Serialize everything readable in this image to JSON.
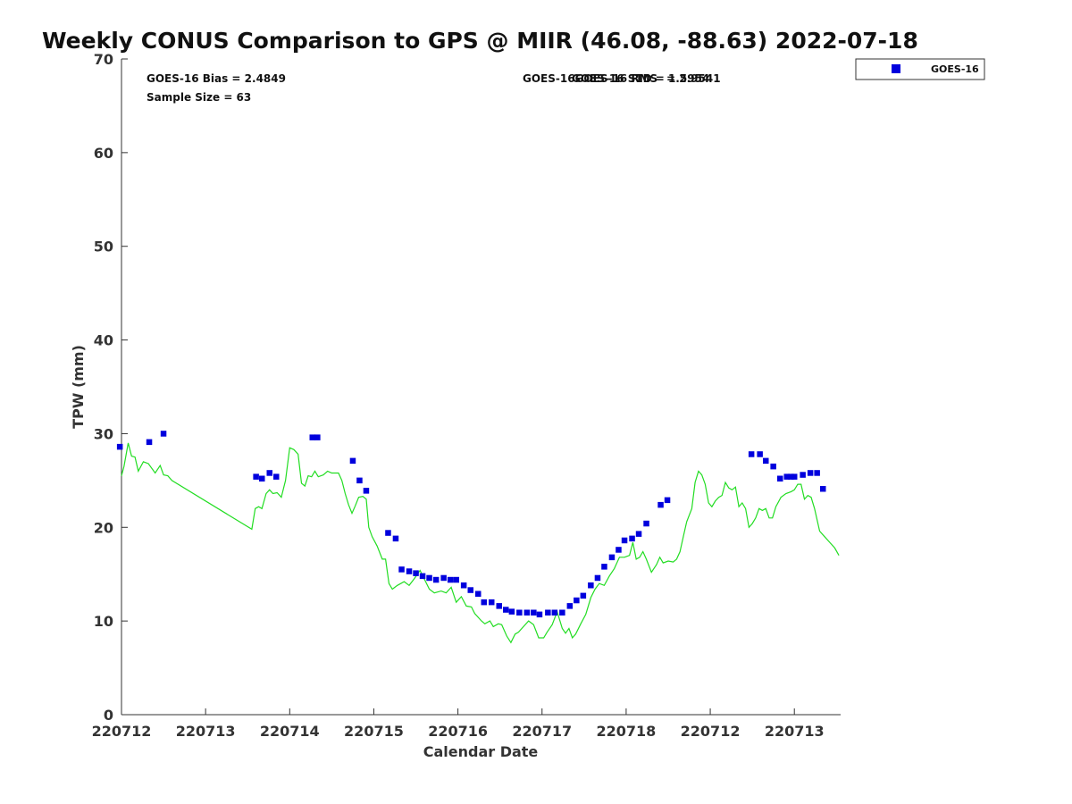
{
  "chart_data": {
    "type": "scatter",
    "title": "Weekly CONUS Comparison to GPS @ MIIR (46.08, -88.63) 2022-07-18",
    "xlabel": "Calendar Date",
    "ylabel": "TPW (mm)",
    "xlim": [
      0,
      8.55
    ],
    "ylim": [
      0,
      70
    ],
    "yticks": [
      0,
      10,
      20,
      30,
      40,
      50,
      60,
      70
    ],
    "xticks": [
      {
        "x": 0,
        "label": "220712"
      },
      {
        "x": 1,
        "label": "220713"
      },
      {
        "x": 2,
        "label": "220714"
      },
      {
        "x": 3,
        "label": "220715"
      },
      {
        "x": 4,
        "label": "220716"
      },
      {
        "x": 5,
        "label": "220717"
      },
      {
        "x": 6,
        "label": "220718"
      },
      {
        "x": 7,
        "label": "220712"
      },
      {
        "x": 8,
        "label": "220713"
      }
    ],
    "grid": false,
    "legend": {
      "position": "top-right",
      "label": "GOES-16"
    },
    "stats": {
      "bias": "GOES-16 Bias = 2.4849",
      "sample": "Sample Size = 63",
      "std_overlap": "GOES-16GOES-16 RMS",
      "rms": "GOES-16 STD = 1.5954",
      "rms_value": "= 2.9541"
    },
    "colors": {
      "goes": "#0000dd",
      "gps": "#22dd22"
    },
    "series": [
      {
        "name": "GOES-16",
        "marker": "square",
        "points": [
          [
            -0.02,
            28.6
          ],
          [
            0.33,
            29.1
          ],
          [
            0.5,
            30.0
          ],
          [
            1.6,
            25.4
          ],
          [
            1.67,
            25.2
          ],
          [
            1.76,
            25.8
          ],
          [
            1.84,
            25.4
          ],
          [
            2.27,
            29.6
          ],
          [
            2.33,
            29.6
          ],
          [
            2.75,
            27.1
          ],
          [
            2.83,
            25.0
          ],
          [
            2.91,
            23.9
          ],
          [
            3.17,
            19.4
          ],
          [
            3.26,
            18.8
          ],
          [
            3.33,
            15.5
          ],
          [
            3.42,
            15.3
          ],
          [
            3.5,
            15.1
          ],
          [
            3.58,
            14.8
          ],
          [
            3.66,
            14.6
          ],
          [
            3.74,
            14.4
          ],
          [
            3.83,
            14.6
          ],
          [
            3.91,
            14.4
          ],
          [
            3.98,
            14.4
          ],
          [
            4.07,
            13.8
          ],
          [
            4.15,
            13.3
          ],
          [
            4.24,
            12.9
          ],
          [
            4.31,
            12.0
          ],
          [
            4.4,
            12.0
          ],
          [
            4.49,
            11.6
          ],
          [
            4.57,
            11.2
          ],
          [
            4.64,
            11.0
          ],
          [
            4.73,
            10.9
          ],
          [
            4.82,
            10.9
          ],
          [
            4.9,
            10.9
          ],
          [
            4.97,
            10.7
          ],
          [
            5.07,
            10.9
          ],
          [
            5.15,
            10.9
          ],
          [
            5.24,
            10.9
          ],
          [
            5.33,
            11.6
          ],
          [
            5.41,
            12.2
          ],
          [
            5.49,
            12.7
          ],
          [
            5.58,
            13.8
          ],
          [
            5.66,
            14.6
          ],
          [
            5.74,
            15.8
          ],
          [
            5.83,
            16.8
          ],
          [
            5.91,
            17.6
          ],
          [
            5.98,
            18.6
          ],
          [
            6.07,
            18.8
          ],
          [
            6.15,
            19.3
          ],
          [
            6.24,
            20.4
          ],
          [
            6.41,
            22.4
          ],
          [
            6.49,
            22.9
          ],
          [
            7.49,
            27.8
          ],
          [
            7.59,
            27.8
          ],
          [
            7.66,
            27.1
          ],
          [
            7.75,
            26.5
          ],
          [
            7.83,
            25.2
          ],
          [
            7.91,
            25.4
          ],
          [
            7.96,
            25.4
          ],
          [
            8.0,
            25.4
          ],
          [
            8.1,
            25.6
          ],
          [
            8.19,
            25.8
          ],
          [
            8.27,
            25.8
          ],
          [
            8.34,
            24.1
          ]
        ]
      },
      {
        "name": "GPS",
        "marker": "line",
        "points": [
          [
            0,
            25.5
          ],
          [
            0.03,
            26.5
          ],
          [
            0.08,
            29.0
          ],
          [
            0.12,
            27.6
          ],
          [
            0.16,
            27.5
          ],
          [
            0.2,
            26.0
          ],
          [
            0.26,
            27.0
          ],
          [
            0.32,
            26.8
          ],
          [
            0.4,
            25.8
          ],
          [
            0.46,
            26.6
          ],
          [
            0.5,
            25.6
          ],
          [
            0.55,
            25.5
          ],
          [
            0.6,
            25.0
          ],
          [
            1.55,
            19.8
          ],
          [
            1.59,
            22.0
          ],
          [
            1.63,
            22.2
          ],
          [
            1.67,
            22.0
          ],
          [
            1.72,
            23.6
          ],
          [
            1.76,
            24.0
          ],
          [
            1.8,
            23.6
          ],
          [
            1.85,
            23.7
          ],
          [
            1.9,
            23.2
          ],
          [
            1.95,
            25.0
          ],
          [
            2.0,
            28.5
          ],
          [
            2.05,
            28.3
          ],
          [
            2.1,
            27.8
          ],
          [
            2.14,
            24.7
          ],
          [
            2.18,
            24.4
          ],
          [
            2.22,
            25.5
          ],
          [
            2.26,
            25.4
          ],
          [
            2.3,
            26.0
          ],
          [
            2.34,
            25.4
          ],
          [
            2.4,
            25.6
          ],
          [
            2.45,
            26.0
          ],
          [
            2.5,
            25.8
          ],
          [
            2.58,
            25.8
          ],
          [
            2.62,
            25.0
          ],
          [
            2.66,
            23.6
          ],
          [
            2.7,
            22.4
          ],
          [
            2.74,
            21.5
          ],
          [
            2.78,
            22.3
          ],
          [
            2.82,
            23.2
          ],
          [
            2.87,
            23.3
          ],
          [
            2.91,
            23.0
          ],
          [
            2.94,
            20.0
          ],
          [
            2.98,
            19.0
          ],
          [
            3.04,
            18.0
          ],
          [
            3.1,
            16.6
          ],
          [
            3.14,
            16.6
          ],
          [
            3.18,
            14.0
          ],
          [
            3.22,
            13.4
          ],
          [
            3.28,
            13.8
          ],
          [
            3.36,
            14.2
          ],
          [
            3.42,
            13.8
          ],
          [
            3.48,
            14.5
          ],
          [
            3.55,
            15.4
          ],
          [
            3.6,
            14.5
          ],
          [
            3.66,
            13.4
          ],
          [
            3.72,
            13.0
          ],
          [
            3.8,
            13.2
          ],
          [
            3.86,
            13.0
          ],
          [
            3.92,
            13.6
          ],
          [
            3.98,
            12.0
          ],
          [
            4.04,
            12.6
          ],
          [
            4.1,
            11.6
          ],
          [
            4.16,
            11.5
          ],
          [
            4.2,
            10.8
          ],
          [
            4.28,
            10.0
          ],
          [
            4.32,
            9.7
          ],
          [
            4.38,
            10.0
          ],
          [
            4.42,
            9.4
          ],
          [
            4.48,
            9.7
          ],
          [
            4.52,
            9.6
          ],
          [
            4.58,
            8.4
          ],
          [
            4.63,
            7.7
          ],
          [
            4.68,
            8.6
          ],
          [
            4.72,
            8.8
          ],
          [
            4.78,
            9.4
          ],
          [
            4.84,
            10.0
          ],
          [
            4.9,
            9.6
          ],
          [
            4.96,
            8.2
          ],
          [
            5.02,
            8.2
          ],
          [
            5.06,
            8.8
          ],
          [
            5.12,
            9.6
          ],
          [
            5.18,
            11.0
          ],
          [
            5.24,
            9.2
          ],
          [
            5.28,
            8.7
          ],
          [
            5.32,
            9.2
          ],
          [
            5.36,
            8.2
          ],
          [
            5.4,
            8.6
          ],
          [
            5.46,
            9.7
          ],
          [
            5.52,
            10.7
          ],
          [
            5.58,
            12.5
          ],
          [
            5.63,
            13.4
          ],
          [
            5.68,
            14.0
          ],
          [
            5.74,
            13.8
          ],
          [
            5.8,
            14.8
          ],
          [
            5.86,
            15.6
          ],
          [
            5.92,
            16.8
          ],
          [
            5.98,
            16.8
          ],
          [
            6.04,
            17.0
          ],
          [
            6.08,
            18.4
          ],
          [
            6.12,
            16.6
          ],
          [
            6.16,
            16.8
          ],
          [
            6.2,
            17.4
          ],
          [
            6.24,
            16.6
          ],
          [
            6.3,
            15.2
          ],
          [
            6.36,
            16.0
          ],
          [
            6.4,
            16.8
          ],
          [
            6.44,
            16.2
          ],
          [
            6.5,
            16.4
          ],
          [
            6.56,
            16.3
          ],
          [
            6.6,
            16.6
          ],
          [
            6.64,
            17.4
          ],
          [
            6.68,
            19.0
          ],
          [
            6.72,
            20.6
          ],
          [
            6.78,
            22.0
          ],
          [
            6.82,
            24.8
          ],
          [
            6.86,
            26.0
          ],
          [
            6.9,
            25.6
          ],
          [
            6.94,
            24.6
          ],
          [
            6.98,
            22.6
          ],
          [
            7.02,
            22.2
          ],
          [
            7.06,
            22.8
          ],
          [
            7.1,
            23.2
          ],
          [
            7.14,
            23.4
          ],
          [
            7.18,
            24.8
          ],
          [
            7.22,
            24.2
          ],
          [
            7.26,
            24.0
          ],
          [
            7.3,
            24.3
          ],
          [
            7.34,
            22.2
          ],
          [
            7.38,
            22.6
          ],
          [
            7.42,
            22.0
          ],
          [
            7.46,
            20.0
          ],
          [
            7.5,
            20.4
          ],
          [
            7.54,
            21.0
          ],
          [
            7.58,
            22.0
          ],
          [
            7.62,
            21.8
          ],
          [
            7.66,
            22.0
          ],
          [
            7.7,
            21.0
          ],
          [
            7.74,
            21.0
          ],
          [
            7.78,
            22.2
          ],
          [
            7.84,
            23.2
          ],
          [
            7.9,
            23.6
          ],
          [
            7.96,
            23.8
          ],
          [
            8.0,
            24.0
          ],
          [
            8.04,
            24.6
          ],
          [
            8.08,
            24.6
          ],
          [
            8.12,
            23.0
          ],
          [
            8.16,
            23.4
          ],
          [
            8.2,
            23.2
          ],
          [
            8.24,
            22.0
          ],
          [
            8.3,
            19.6
          ],
          [
            8.36,
            19.0
          ],
          [
            8.42,
            18.4
          ],
          [
            8.48,
            17.8
          ],
          [
            8.53,
            17.0
          ]
        ]
      }
    ]
  }
}
